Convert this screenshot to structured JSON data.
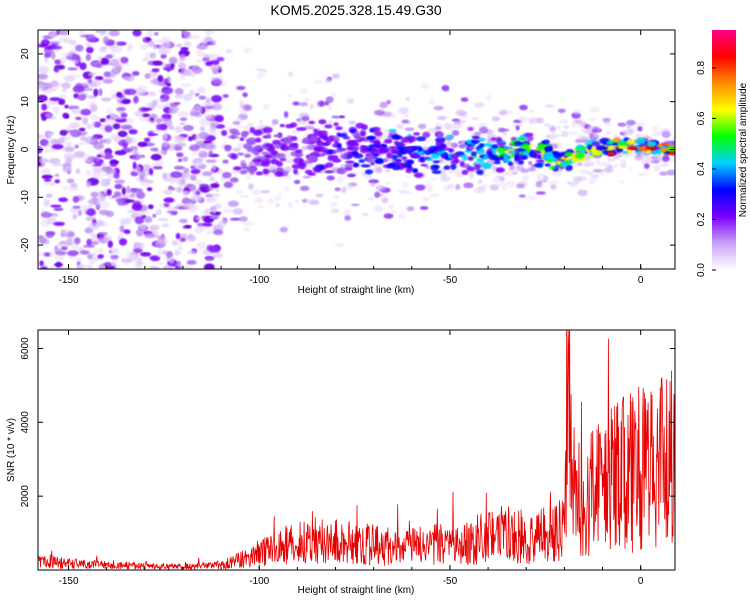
{
  "title": "KOM5.2025.328.15.49.G30",
  "colors": {
    "background": "#ffffff",
    "axis": "#000000",
    "snr_line": "#e60000"
  },
  "chart_data": [
    {
      "type": "heatmap",
      "title": "KOM5.2025.328.15.49.G30",
      "xlabel": "Height of straight line (km)",
      "ylabel": "Frequency (Hz)",
      "xlim": [
        -158,
        9
      ],
      "ylim": [
        -25,
        25
      ],
      "xticks": [
        "-150",
        "-100",
        "-50",
        "0"
      ],
      "xtick_values": [
        -150,
        -100,
        -50,
        0
      ],
      "yticks": [
        "20",
        "10",
        "0",
        "-10",
        "-20"
      ],
      "ytick_values": [
        20,
        10,
        0,
        -10,
        -20
      ],
      "signal_track": {
        "x": [
          -110,
          -100,
          -90,
          -80,
          -70,
          -60,
          -50,
          -40,
          -30,
          -25,
          -20,
          -15,
          -10,
          -5,
          0,
          5,
          9
        ],
        "frequency": [
          -1,
          0,
          0,
          1,
          0,
          -1,
          -1,
          -1,
          0,
          -1,
          -2,
          0,
          0,
          1,
          1,
          0,
          0
        ]
      },
      "colorbar": {
        "label": "Normalized spectral amplitude",
        "range": [
          0,
          0.95
        ],
        "ticks": [
          "0.0",
          "0.2",
          "0.4",
          "0.6",
          "0.8"
        ],
        "tick_values": [
          0.0,
          0.2,
          0.4,
          0.6,
          0.8
        ],
        "colormap": [
          "#ffffff",
          "#c9a2f7",
          "#7b00ff",
          "#0000ff",
          "#00d0ff",
          "#00ff00",
          "#ffff00",
          "#ff8c00",
          "#ff0000",
          "#ff0088"
        ]
      }
    },
    {
      "type": "line",
      "xlabel": "Height of straight line (km)",
      "ylabel": "SNR (10 * v/v)",
      "xlim": [
        -158,
        9
      ],
      "ylim": [
        0,
        6500
      ],
      "xticks": [
        "-150",
        "-100",
        "-50",
        "0"
      ],
      "xtick_values": [
        -150,
        -100,
        -50,
        0
      ],
      "yticks": [
        "2000",
        "4000",
        "6000"
      ],
      "ytick_values": [
        2000,
        4000,
        6000
      ],
      "series": [
        {
          "name": "SNR",
          "x": [
            -158,
            -150,
            -140,
            -130,
            -120,
            -110,
            -105,
            -100,
            -95,
            -90,
            -85,
            -80,
            -75,
            -70,
            -65,
            -60,
            -55,
            -50,
            -45,
            -40,
            -35,
            -30,
            -25,
            -20,
            -19,
            -18,
            -15,
            -10,
            -5,
            0,
            5,
            9
          ],
          "y": [
            250,
            200,
            150,
            120,
            110,
            150,
            300,
            500,
            650,
            800,
            900,
            850,
            800,
            750,
            700,
            700,
            750,
            800,
            850,
            1000,
            1100,
            1000,
            1050,
            1200,
            6500,
            2400,
            2200,
            2600,
            2900,
            3100,
            3200,
            3400
          ]
        }
      ]
    }
  ]
}
